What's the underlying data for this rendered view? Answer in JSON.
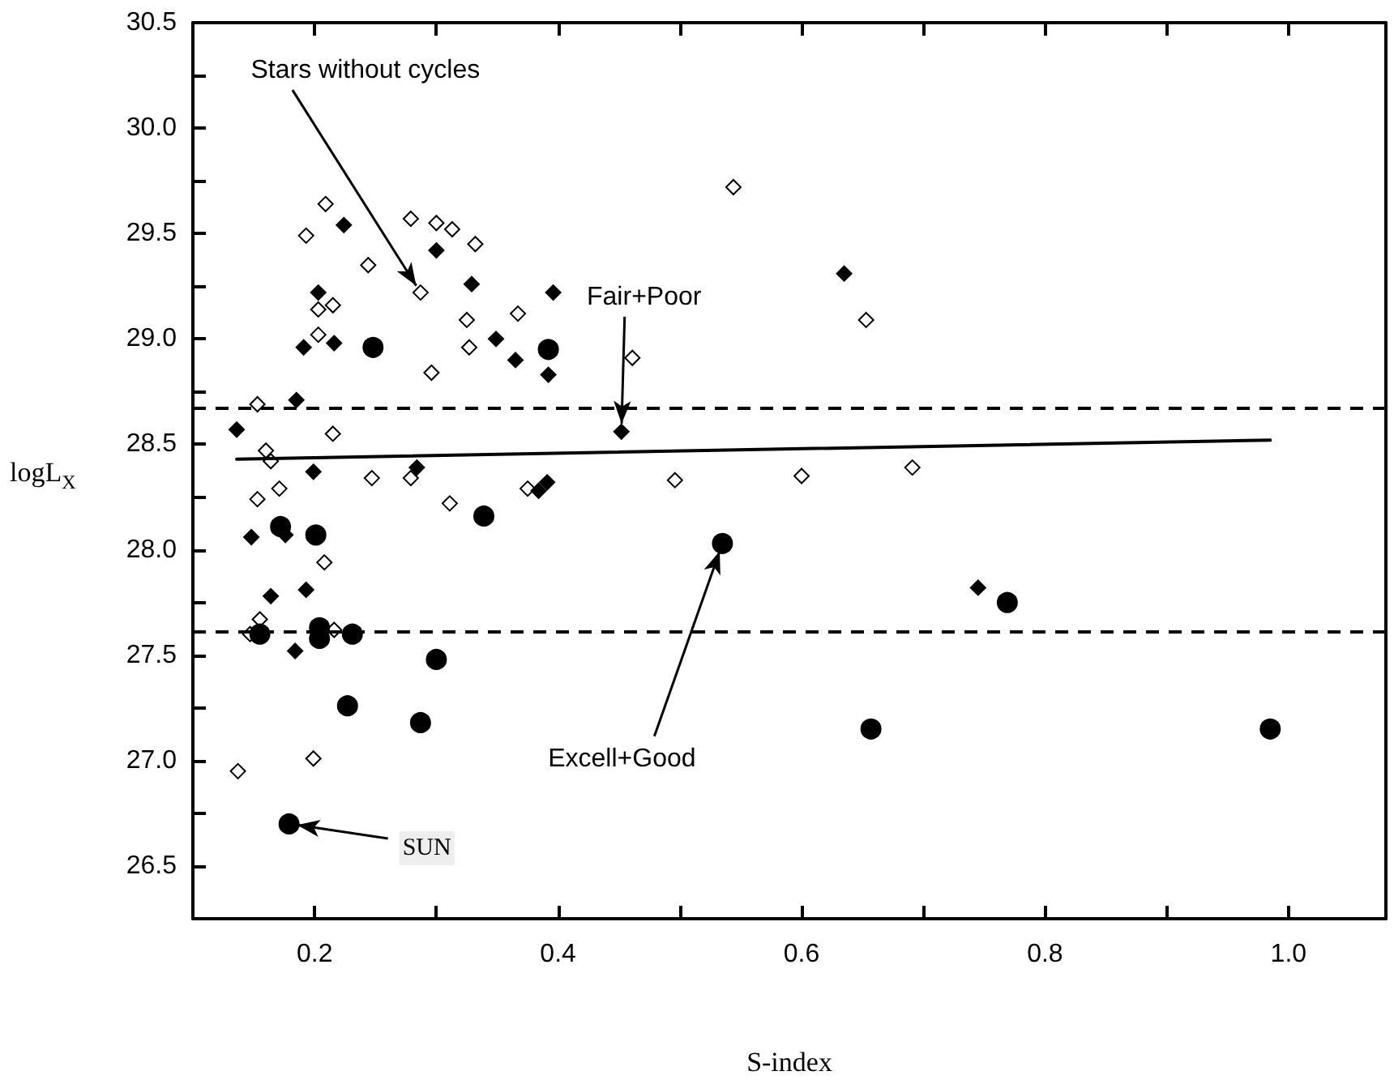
{
  "chart_data": {
    "type": "scatter",
    "xlabel": "S-index",
    "ylabel": "logL$_{X}$",
    "xlim": [
      0.1,
      1.08
    ],
    "ylim": [
      26.25,
      30.5
    ],
    "xticks": [
      {
        "value": 0.1,
        "label": null
      },
      0.2,
      {
        "value": 0.3,
        "label": null
      },
      0.4,
      {
        "value": 0.5,
        "label": null
      },
      0.6,
      {
        "value": 0.7,
        "label": null
      },
      0.8,
      {
        "value": 0.9,
        "label": null
      },
      {
        "value": 1,
        "label": "1.0"
      }
    ],
    "yticks": [
      26.5,
      {
        "value": 26.75,
        "label": null
      },
      {
        "value": 27,
        "label": "27.0"
      },
      {
        "value": 27.25,
        "label": null
      },
      27.5,
      {
        "value": 27.75,
        "label": null
      },
      {
        "value": 28,
        "label": "28.0"
      },
      {
        "value": 28.25,
        "label": null
      },
      28.5,
      {
        "value": 28.75,
        "label": null
      },
      {
        "value": 29,
        "label": "29.0"
      },
      {
        "value": 29.25,
        "label": null
      },
      29.5,
      {
        "value": 29.75,
        "label": null
      },
      {
        "value": 30,
        "label": "30.0"
      },
      {
        "value": 30.25,
        "label": null
      },
      30.5
    ],
    "grid": false,
    "series": [
      {
        "marker": "diamond",
        "color": "#ffffff",
        "x": [
          0.209,
          0.193,
          0.244,
          0.279,
          0.3,
          0.313,
          0.332,
          0.287,
          0.203,
          0.215,
          0.203,
          0.325,
          0.367,
          0.327,
          0.296,
          0.461,
          0.153,
          0.215,
          0.16,
          0.164,
          0.247,
          0.279,
          0.171,
          0.153,
          0.311,
          0.375,
          0.496,
          0.544,
          0.653,
          0.6,
          0.691,
          0.208,
          0.155,
          0.147,
          0.216,
          0.199,
          0.137
        ],
        "values": [
          29.64,
          29.49,
          29.35,
          29.57,
          29.55,
          29.52,
          29.45,
          29.22,
          29.14,
          29.16,
          29.02,
          29.09,
          29.12,
          28.96,
          28.84,
          28.91,
          28.69,
          28.55,
          28.47,
          28.42,
          28.34,
          28.34,
          28.29,
          28.24,
          28.22,
          28.29,
          28.33,
          29.72,
          29.09,
          28.35,
          28.39,
          27.94,
          27.67,
          27.6,
          27.62,
          27.01,
          26.95
        ]
      },
      {
        "marker": "diamond",
        "color": "#000000",
        "x": [
          0.224,
          0.203,
          0.3,
          0.329,
          0.396,
          0.191,
          0.216,
          0.349,
          0.365,
          0.392,
          0.185,
          0.136,
          0.452,
          0.199,
          0.284,
          0.384,
          0.391,
          0.148,
          0.176,
          0.164,
          0.193,
          0.184,
          0.635,
          0.745
        ],
        "values": [
          29.54,
          29.22,
          29.42,
          29.26,
          29.22,
          28.96,
          28.98,
          29.0,
          28.9,
          28.83,
          28.71,
          28.57,
          28.56,
          28.37,
          28.39,
          28.28,
          28.32,
          28.06,
          28.07,
          27.78,
          27.81,
          27.52,
          29.31,
          27.82
        ]
      },
      {
        "marker": "circle",
        "color": "#000000",
        "x": [
          0.248,
          0.392,
          0.339,
          0.172,
          0.201,
          0.535,
          0.155,
          0.204,
          0.204,
          0.231,
          0.3,
          0.227,
          0.287,
          0.179,
          0.657,
          0.985,
          0.769
        ],
        "values": [
          28.96,
          28.95,
          28.16,
          28.11,
          28.07,
          28.03,
          27.6,
          27.63,
          27.58,
          27.6,
          27.48,
          27.26,
          27.18,
          26.7,
          27.15,
          27.15,
          27.75
        ]
      },
      {
        "type": "line",
        "marker": "none",
        "line_style": "solid",
        "color": "#000000",
        "x": [
          0.136,
          0.985
        ],
        "values": [
          28.43,
          28.52
        ]
      }
    ],
    "ref_lines": [
      {
        "axis": "y",
        "value": 28.67,
        "color": "#000000",
        "line_style": "dashed"
      },
      {
        "axis": "y",
        "value": 27.61,
        "color": "#000000",
        "line_style": "dashed"
      }
    ],
    "annotations": [
      {
        "text": "Stars without cycles",
        "x": 0.287,
        "y": 29.22
      },
      {
        "text": "Fair+Poor",
        "x": 0.452,
        "y": 28.56
      },
      {
        "text": "Excell+Good",
        "x": 0.535,
        "y": 28.03
      },
      {
        "text": "SUN",
        "x": 0.179,
        "y": 26.7
      }
    ]
  }
}
